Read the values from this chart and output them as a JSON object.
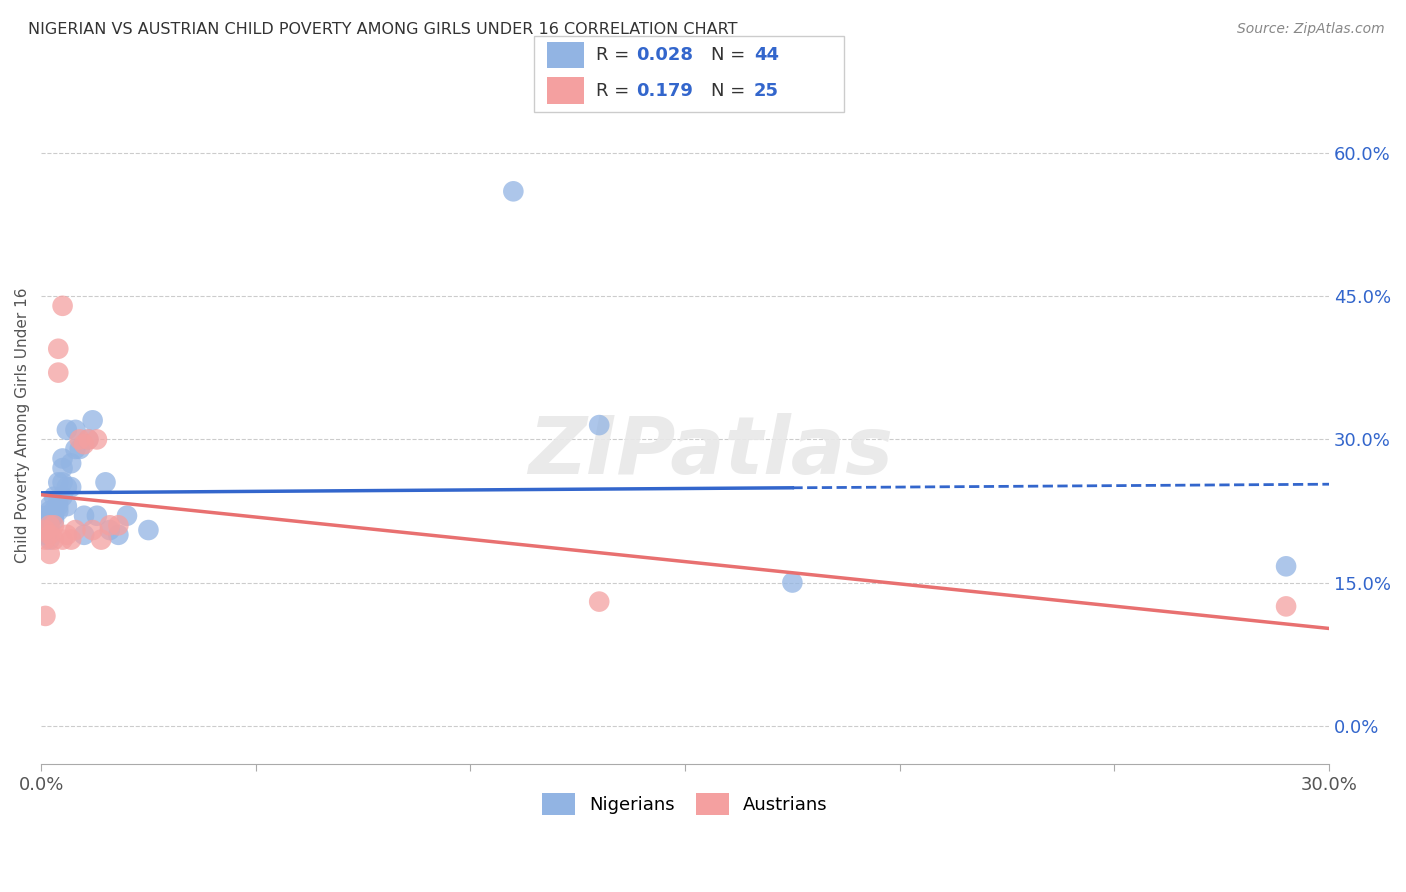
{
  "title": "NIGERIAN VS AUSTRIAN CHILD POVERTY AMONG GIRLS UNDER 16 CORRELATION CHART",
  "source": "Source: ZipAtlas.com",
  "ylabel": "Child Poverty Among Girls Under 16",
  "watermark": "ZIPatlas",
  "legend_R_nigerian": "0.028",
  "legend_N_nigerian": "44",
  "legend_R_austrian": "0.179",
  "legend_N_austrian": "25",
  "nigerian_color": "#92b4e3",
  "austrian_color": "#f4a0a0",
  "nigerian_line_color": "#3366cc",
  "austrian_line_color": "#e87070",
  "background_color": "#ffffff",
  "xlim": [
    0.0,
    0.3
  ],
  "ylim": [
    -0.04,
    0.67
  ],
  "ytick_vals": [
    0.0,
    0.15,
    0.3,
    0.45,
    0.6
  ],
  "nigerian_x": [
    0.001,
    0.001,
    0.001,
    0.001,
    0.002,
    0.002,
    0.002,
    0.002,
    0.002,
    0.003,
    0.003,
    0.003,
    0.003,
    0.003,
    0.004,
    0.004,
    0.004,
    0.004,
    0.005,
    0.005,
    0.005,
    0.005,
    0.006,
    0.006,
    0.006,
    0.007,
    0.007,
    0.008,
    0.008,
    0.009,
    0.01,
    0.01,
    0.011,
    0.012,
    0.013,
    0.015,
    0.016,
    0.018,
    0.02,
    0.025,
    0.11,
    0.13,
    0.175,
    0.29
  ],
  "nigerian_y": [
    0.215,
    0.22,
    0.21,
    0.2,
    0.225,
    0.215,
    0.205,
    0.195,
    0.23,
    0.225,
    0.22,
    0.24,
    0.215,
    0.22,
    0.235,
    0.225,
    0.255,
    0.23,
    0.255,
    0.24,
    0.27,
    0.28,
    0.25,
    0.23,
    0.31,
    0.275,
    0.25,
    0.31,
    0.29,
    0.29,
    0.22,
    0.2,
    0.3,
    0.32,
    0.22,
    0.255,
    0.205,
    0.2,
    0.22,
    0.205,
    0.56,
    0.315,
    0.15,
    0.167
  ],
  "austrian_x": [
    0.001,
    0.001,
    0.001,
    0.002,
    0.002,
    0.002,
    0.003,
    0.003,
    0.004,
    0.004,
    0.005,
    0.005,
    0.006,
    0.007,
    0.008,
    0.009,
    0.01,
    0.011,
    0.012,
    0.013,
    0.014,
    0.016,
    0.018,
    0.13,
    0.29
  ],
  "austrian_y": [
    0.205,
    0.195,
    0.115,
    0.2,
    0.18,
    0.21,
    0.21,
    0.195,
    0.395,
    0.37,
    0.195,
    0.44,
    0.2,
    0.195,
    0.205,
    0.3,
    0.295,
    0.3,
    0.205,
    0.3,
    0.195,
    0.21,
    0.21,
    0.13,
    0.125
  ]
}
